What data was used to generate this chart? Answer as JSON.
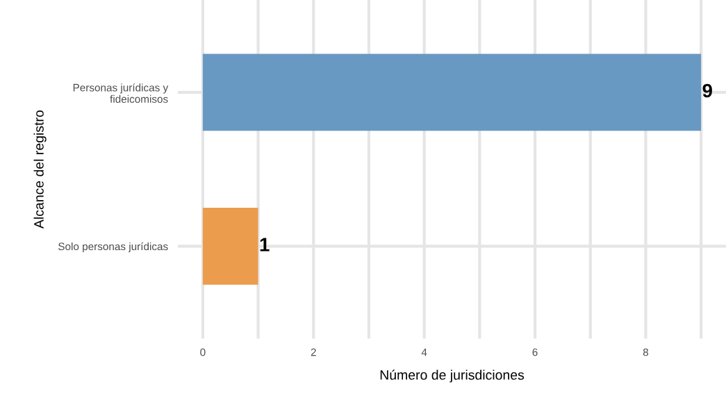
{
  "chart_data": {
    "type": "bar",
    "orientation": "horizontal",
    "categories": [
      "Personas jurídicas y\nfideicomisos",
      "Solo personas jurídicas"
    ],
    "values": [
      9,
      1
    ],
    "colors": [
      "#6899c3",
      "#eb9c4d"
    ],
    "xlabel": "Número de jurisdiciones",
    "ylabel": "Alcance del registro",
    "xlim": [
      -0.45,
      9.45
    ],
    "xticks": [
      0,
      2,
      4,
      6,
      8
    ],
    "grid": true,
    "data_labels": true,
    "legend": false
  }
}
